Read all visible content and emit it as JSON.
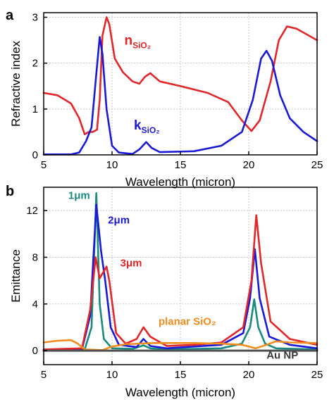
{
  "chart_data": [
    {
      "panel": "a",
      "type": "line",
      "xlabel": "Wavelength (micron)",
      "ylabel": "Refractive index",
      "xlim": [
        5,
        25
      ],
      "ylim": [
        0,
        3.1
      ],
      "xticks": [
        "5",
        "10",
        "15",
        "20",
        "25"
      ],
      "yticks": [
        "0",
        "1",
        "2",
        "3"
      ],
      "xtick_values": [
        5,
        10,
        15,
        20,
        25
      ],
      "ytick_values": [
        0,
        1,
        2,
        3
      ],
      "grid": true,
      "series": [
        {
          "name": "n",
          "name_sub": "SiO2",
          "color": "#e3262a",
          "points": [
            [
              5,
              1.35
            ],
            [
              6,
              1.3
            ],
            [
              7,
              1.12
            ],
            [
              7.6,
              0.8
            ],
            [
              8,
              0.45
            ],
            [
              8.3,
              0.5
            ],
            [
              8.6,
              0.5
            ],
            [
              8.9,
              0.55
            ],
            [
              9.1,
              1.2
            ],
            [
              9.3,
              2.6
            ],
            [
              9.6,
              3.0
            ],
            [
              9.8,
              2.85
            ],
            [
              10.2,
              2.1
            ],
            [
              10.8,
              1.8
            ],
            [
              11.5,
              1.6
            ],
            [
              12,
              1.55
            ],
            [
              12.4,
              1.7
            ],
            [
              12.8,
              1.78
            ],
            [
              13.5,
              1.6
            ],
            [
              15,
              1.5
            ],
            [
              17,
              1.35
            ],
            [
              18.5,
              1.15
            ],
            [
              19.5,
              0.75
            ],
            [
              20.2,
              0.52
            ],
            [
              20.8,
              0.75
            ],
            [
              21.6,
              1.6
            ],
            [
              22.2,
              2.5
            ],
            [
              22.8,
              2.8
            ],
            [
              23.5,
              2.75
            ],
            [
              25,
              2.5
            ]
          ]
        },
        {
          "name": "k",
          "name_sub": "SiO2",
          "color": "#1a1ad6",
          "points": [
            [
              5,
              0.01
            ],
            [
              7,
              0.01
            ],
            [
              7.6,
              0.05
            ],
            [
              8.1,
              0.3
            ],
            [
              8.5,
              0.6
            ],
            [
              8.8,
              1.6
            ],
            [
              9.1,
              2.57
            ],
            [
              9.3,
              2.2
            ],
            [
              9.6,
              1.0
            ],
            [
              10,
              0.2
            ],
            [
              10.5,
              0.05
            ],
            [
              11.5,
              0.02
            ],
            [
              12,
              0.12
            ],
            [
              12.5,
              0.28
            ],
            [
              12.9,
              0.15
            ],
            [
              13.5,
              0.06
            ],
            [
              16,
              0.08
            ],
            [
              18,
              0.2
            ],
            [
              19.5,
              0.5
            ],
            [
              20.3,
              1.2
            ],
            [
              20.9,
              2.1
            ],
            [
              21.3,
              2.27
            ],
            [
              21.7,
              2.05
            ],
            [
              22.3,
              1.3
            ],
            [
              23,
              0.8
            ],
            [
              24,
              0.5
            ],
            [
              25,
              0.3
            ]
          ]
        }
      ],
      "annotations": [
        {
          "text": "n",
          "sub": "SiO₂",
          "x": 10.9,
          "y": 2.4,
          "color": "#e3262a"
        },
        {
          "text": "k",
          "sub": "SiO₂",
          "x": 11.6,
          "y": 0.55,
          "color": "#1a1ad6"
        }
      ]
    },
    {
      "panel": "b",
      "type": "line",
      "xlabel": "Wavelength (micron)",
      "ylabel": "Emittance",
      "xlim": [
        5,
        25
      ],
      "ylim": [
        -1.2,
        14
      ],
      "xticks": [
        "5",
        "10",
        "15",
        "20",
        "25"
      ],
      "yticks": [
        "0",
        "4",
        "8",
        "12"
      ],
      "xtick_values": [
        5,
        10,
        15,
        20,
        25
      ],
      "ytick_values": [
        0,
        4,
        8,
        12
      ],
      "grid": true,
      "series": [
        {
          "name": "1μm",
          "color": "#1a8a80",
          "points": [
            [
              5,
              0.02
            ],
            [
              8,
              0.1
            ],
            [
              8.5,
              2.0
            ],
            [
              8.85,
              13.5
            ],
            [
              9.1,
              4.0
            ],
            [
              9.4,
              1.0
            ],
            [
              10,
              0.2
            ],
            [
              11.5,
              0.15
            ],
            [
              12.3,
              0.45
            ],
            [
              12.8,
              0.2
            ],
            [
              14,
              0.1
            ],
            [
              18,
              0.2
            ],
            [
              19.5,
              0.6
            ],
            [
              20.1,
              2.0
            ],
            [
              20.4,
              4.4
            ],
            [
              20.7,
              2.0
            ],
            [
              21.2,
              0.6
            ],
            [
              22,
              0.2
            ],
            [
              25,
              0.1
            ]
          ]
        },
        {
          "name": "2μm",
          "color": "#1a1ad6",
          "points": [
            [
              5,
              0.05
            ],
            [
              7.8,
              0.1
            ],
            [
              8.4,
              3.0
            ],
            [
              8.85,
              12.5
            ],
            [
              9.2,
              8.5
            ],
            [
              9.5,
              6.0
            ],
            [
              9.9,
              2.0
            ],
            [
              10.5,
              0.5
            ],
            [
              11.8,
              0.3
            ],
            [
              12.3,
              1.0
            ],
            [
              12.8,
              0.4
            ],
            [
              14,
              0.2
            ],
            [
              18,
              0.5
            ],
            [
              19.6,
              1.5
            ],
            [
              20.1,
              4.5
            ],
            [
              20.45,
              8.7
            ],
            [
              20.8,
              4.5
            ],
            [
              21.5,
              1.2
            ],
            [
              23,
              0.5
            ],
            [
              25,
              0.2
            ]
          ]
        },
        {
          "name": "3μm",
          "color": "#e3262a",
          "points": [
            [
              5,
              0.1
            ],
            [
              7.8,
              0.2
            ],
            [
              8.4,
              3.5
            ],
            [
              8.8,
              8.0
            ],
            [
              9.1,
              6.2
            ],
            [
              9.6,
              7.2
            ],
            [
              9.8,
              6.0
            ],
            [
              10.3,
              1.5
            ],
            [
              11,
              0.6
            ],
            [
              11.8,
              1.0
            ],
            [
              12.3,
              2.0
            ],
            [
              12.8,
              1.2
            ],
            [
              14,
              0.4
            ],
            [
              16,
              0.5
            ],
            [
              18,
              0.7
            ],
            [
              19.6,
              2.0
            ],
            [
              20.2,
              6.0
            ],
            [
              20.55,
              11.6
            ],
            [
              20.9,
              7.5
            ],
            [
              21.6,
              2.5
            ],
            [
              23,
              1.0
            ],
            [
              25,
              0.5
            ]
          ]
        },
        {
          "name": "planar SiO₂",
          "color": "#f28c1c",
          "points": [
            [
              5,
              0.7
            ],
            [
              6,
              0.85
            ],
            [
              7,
              0.9
            ],
            [
              7.5,
              0.6
            ],
            [
              8,
              0.1
            ],
            [
              9.3,
              0.05
            ],
            [
              10,
              0.35
            ],
            [
              11,
              0.55
            ],
            [
              13,
              0.65
            ],
            [
              16,
              0.65
            ],
            [
              18,
              0.6
            ],
            [
              19.5,
              0.5
            ],
            [
              20.5,
              0.2
            ],
            [
              21.3,
              0.5
            ],
            [
              22,
              0.8
            ],
            [
              23,
              0.7
            ],
            [
              25,
              0.65
            ]
          ]
        },
        {
          "name": "Au NP",
          "color": "#505050",
          "points": [
            [
              5,
              0.0
            ],
            [
              25,
              0.0
            ]
          ]
        }
      ],
      "annotations": [
        {
          "text": "1μm",
          "x": 6.8,
          "y": 13.0,
          "color": "#1a8a80"
        },
        {
          "text": "2μm",
          "x": 9.7,
          "y": 10.9,
          "color": "#1a1ad6"
        },
        {
          "text": "3μm",
          "x": 10.6,
          "y": 7.2,
          "color": "#e3262a"
        },
        {
          "text": "planar SiO₂",
          "x": 13.4,
          "y": 2.2,
          "color": "#f28c1c"
        },
        {
          "text": "Au NP",
          "x": 21.3,
          "y": -0.7,
          "color": "#3a3a3a"
        }
      ]
    }
  ]
}
